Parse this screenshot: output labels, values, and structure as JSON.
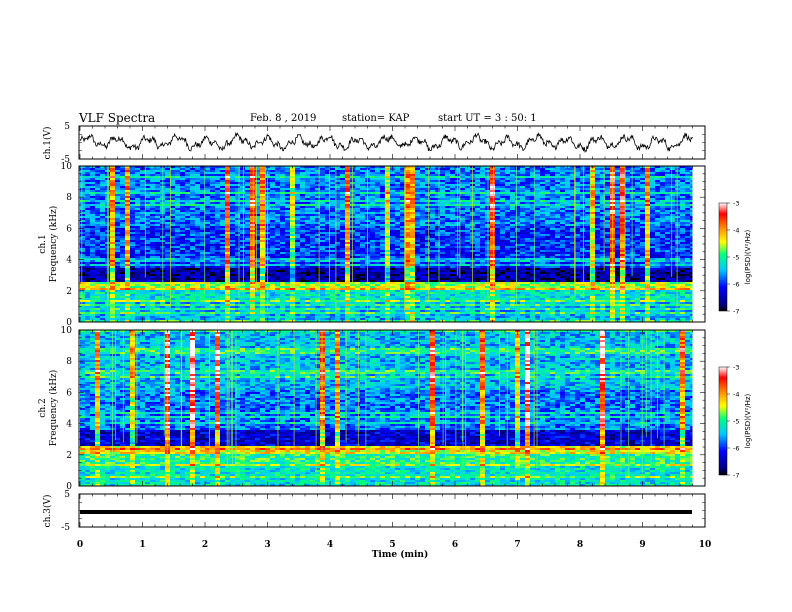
{
  "header": {
    "title": "VLF Spectra",
    "date": "Feb. 8 , 2019",
    "station": "station= KAP",
    "start": "start UT = 3 : 50: 1"
  },
  "chart_data": [
    {
      "type": "line",
      "panel": "ch1-waveform",
      "ylabel": "ch.1(V)",
      "ylim": [
        -5,
        5
      ],
      "yticks": [
        "5",
        "-5"
      ],
      "xlim": [
        0,
        10
      ],
      "description_of_series": "noisy oscillating voltage trace, roughly between -3 and +3 V",
      "x_end": 9.8,
      "amplitude_approx": 2.5
    },
    {
      "type": "heatmap",
      "panel": "ch1-spectrogram",
      "ylabel": "Frequency (kHz)",
      "chlabel": "ch.1",
      "ylim": [
        0,
        10
      ],
      "yticks": [
        "0",
        "2",
        "4",
        "6",
        "8",
        "10"
      ],
      "xlim": [
        0,
        10
      ],
      "colorbar": {
        "label": "log(PSD)(V²/Hz)",
        "range": [
          -7,
          -3
        ],
        "ticks": [
          "-3",
          "-4",
          "-5",
          "-6",
          "-7"
        ]
      }
    },
    {
      "type": "heatmap",
      "panel": "ch2-spectrogram",
      "ylabel": "Frequency (kHz)",
      "chlabel": "ch.2",
      "ylim": [
        0,
        10
      ],
      "yticks": [
        "0",
        "2",
        "4",
        "6",
        "8",
        "10"
      ],
      "xlim": [
        0,
        10
      ],
      "colorbar": {
        "label": "log(PSD)(V²/Hz)",
        "range": [
          -7,
          -3
        ],
        "ticks": [
          "-3",
          "-4",
          "-5",
          "-6",
          "-7"
        ]
      }
    },
    {
      "type": "line",
      "panel": "ch3-waveform",
      "ylabel": "ch.3(V)",
      "ylim": [
        -5,
        5
      ],
      "yticks": [
        "5",
        "-5"
      ],
      "xlim": [
        0,
        10
      ],
      "constant_value": -1,
      "x_end": 9.8
    }
  ],
  "xaxis": {
    "label": "Time (min)",
    "ticks": [
      "0",
      "1",
      "2",
      "3",
      "4",
      "5",
      "6",
      "7",
      "8",
      "9",
      "10"
    ]
  }
}
